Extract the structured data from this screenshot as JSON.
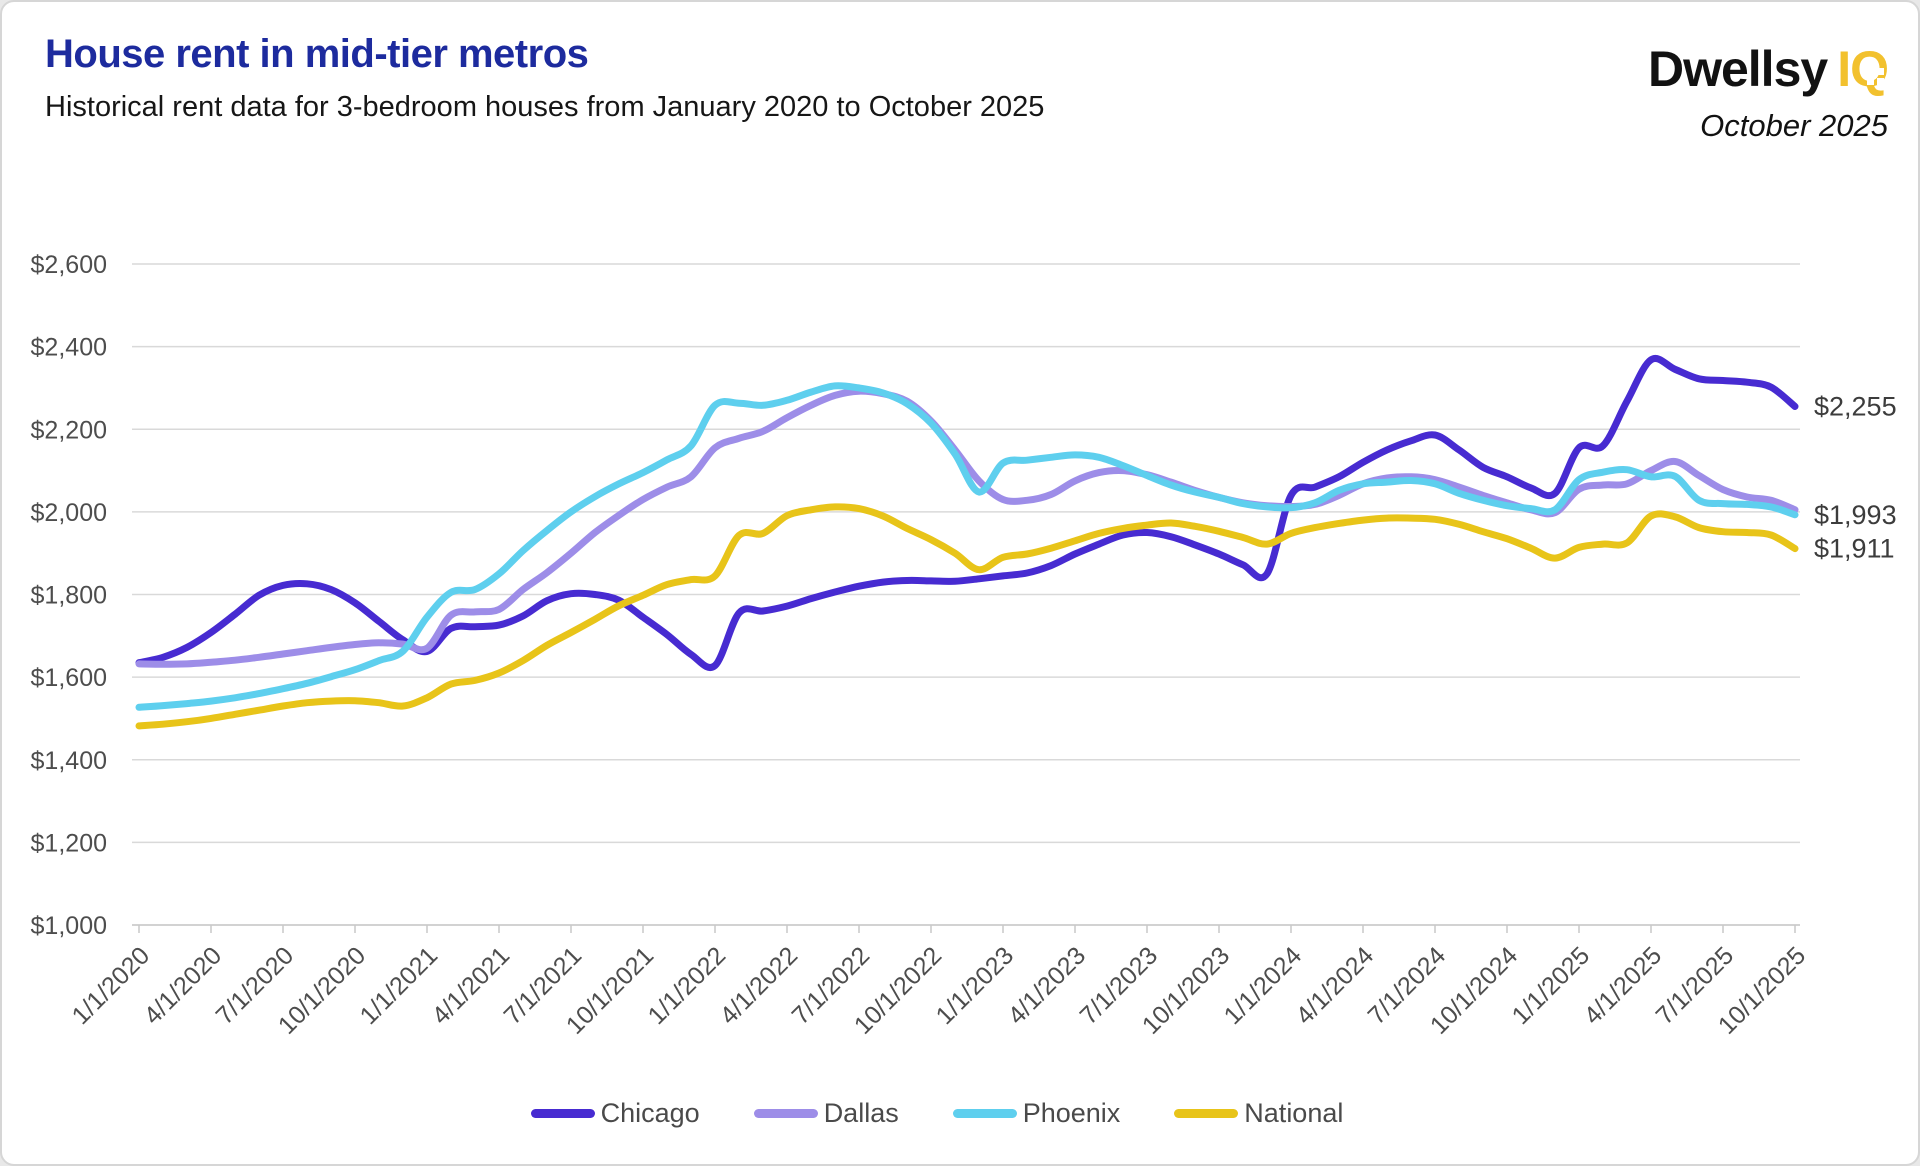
{
  "header": {
    "title": "House rent in mid-tier metros",
    "subtitle": "Historical rent data for 3-bedroom houses from January 2020 to October 2025",
    "logo_brand": "Dwellsy",
    "logo_suffix": "IQ",
    "date_label": "October 2025"
  },
  "colors": {
    "title": "#1d2b9e",
    "logo_accent": "#f2c12e",
    "grid": "#d9d9d9",
    "axis_text": "#4d4d4d",
    "end_label_text": "#3c3c3c"
  },
  "chart_data": {
    "type": "line",
    "title": "House rent in mid-tier metros",
    "x_unit": "month",
    "x_start": "1/1/2020",
    "x_end": "10/1/2025",
    "tick_every_months": 3,
    "x_tick_labels": [
      "1/1/2020",
      "4/1/2020",
      "7/1/2020",
      "10/1/2020",
      "1/1/2021",
      "4/1/2021",
      "7/1/2021",
      "10/1/2021",
      "1/1/2022",
      "4/1/2022",
      "7/1/2022",
      "10/1/2022",
      "1/1/2023",
      "4/1/2023",
      "7/1/2023",
      "10/1/2023",
      "1/1/2024",
      "4/1/2024",
      "7/1/2024",
      "10/1/2024",
      "1/1/2025",
      "4/1/2025",
      "7/1/2025",
      "10/1/2025"
    ],
    "ylim": [
      1000,
      2600
    ],
    "y_ticks": [
      1000,
      1200,
      1400,
      1600,
      1800,
      2000,
      2200,
      2400,
      2600
    ],
    "y_tick_labels": [
      "$1,000",
      "$1,200",
      "$1,400",
      "$1,600",
      "$1,800",
      "$2,000",
      "$2,200",
      "$2,400",
      "$2,600"
    ],
    "grid": "horizontal-only",
    "legend_position": "bottom",
    "series": [
      {
        "name": "Chicago",
        "color": "#472bd1",
        "values": [
          1635,
          1648,
          1672,
          1708,
          1752,
          1798,
          1822,
          1826,
          1812,
          1780,
          1735,
          1690,
          1662,
          1718,
          1722,
          1726,
          1748,
          1785,
          1802,
          1800,
          1786,
          1745,
          1703,
          1655,
          1628,
          1755,
          1760,
          1772,
          1790,
          1806,
          1820,
          1830,
          1834,
          1833,
          1832,
          1838,
          1845,
          1852,
          1870,
          1898,
          1922,
          1944,
          1950,
          1940,
          1920,
          1898,
          1872,
          1850,
          2040,
          2060,
          2085,
          2120,
          2150,
          2172,
          2186,
          2150,
          2108,
          2085,
          2058,
          2045,
          2155,
          2160,
          2268,
          2368,
          2345,
          2322,
          2318,
          2314,
          2302,
          2255
        ]
      },
      {
        "name": "Dallas",
        "color": "#9d8de8",
        "values": [
          1632,
          1631,
          1632,
          1636,
          1641,
          1648,
          1656,
          1664,
          1672,
          1679,
          1683,
          1680,
          1670,
          1750,
          1758,
          1764,
          1812,
          1853,
          1900,
          1950,
          1992,
          2030,
          2060,
          2085,
          2155,
          2178,
          2195,
          2228,
          2258,
          2282,
          2292,
          2286,
          2268,
          2220,
          2150,
          2075,
          2030,
          2028,
          2042,
          2075,
          2095,
          2100,
          2090,
          2072,
          2052,
          2035,
          2022,
          2015,
          2013,
          2018,
          2040,
          2068,
          2082,
          2085,
          2078,
          2060,
          2040,
          2022,
          2005,
          1998,
          2055,
          2065,
          2068,
          2100,
          2122,
          2088,
          2054,
          2036,
          2028,
          2005
        ]
      },
      {
        "name": "Phoenix",
        "color": "#5ecfee",
        "values": [
          1527,
          1531,
          1536,
          1542,
          1550,
          1560,
          1572,
          1585,
          1601,
          1618,
          1640,
          1663,
          1745,
          1805,
          1812,
          1850,
          1906,
          1955,
          2000,
          2037,
          2068,
          2095,
          2126,
          2160,
          2258,
          2263,
          2258,
          2270,
          2290,
          2305,
          2300,
          2288,
          2262,
          2215,
          2140,
          2048,
          2118,
          2125,
          2132,
          2138,
          2132,
          2112,
          2088,
          2065,
          2048,
          2035,
          2020,
          2012,
          2010,
          2022,
          2052,
          2068,
          2072,
          2076,
          2068,
          2045,
          2028,
          2015,
          2008,
          2005,
          2078,
          2096,
          2102,
          2085,
          2086,
          2028,
          2020,
          2018,
          2012,
          1993
        ]
      },
      {
        "name": "National",
        "color": "#e8c419",
        "values": [
          1482,
          1486,
          1492,
          1500,
          1510,
          1520,
          1530,
          1538,
          1542,
          1543,
          1538,
          1530,
          1550,
          1583,
          1592,
          1610,
          1640,
          1677,
          1708,
          1740,
          1773,
          1798,
          1824,
          1836,
          1845,
          1943,
          1948,
          1991,
          2005,
          2012,
          2008,
          1990,
          1960,
          1933,
          1900,
          1860,
          1890,
          1898,
          1912,
          1930,
          1948,
          1960,
          1968,
          1973,
          1965,
          1953,
          1938,
          1922,
          1948,
          1962,
          1972,
          1980,
          1985,
          1985,
          1982,
          1970,
          1952,
          1935,
          1912,
          1888,
          1914,
          1922,
          1925,
          1990,
          1988,
          1962,
          1952,
          1950,
          1944,
          1911
        ]
      }
    ],
    "end_labels": [
      {
        "text": "$2,255",
        "value": 2255,
        "series": "Chicago"
      },
      {
        "text": "$1,993",
        "value": 1993,
        "series": "Phoenix"
      },
      {
        "text": "$1,911",
        "value": 1911,
        "series": "National"
      }
    ],
    "legend": [
      "Chicago",
      "Dallas",
      "Phoenix",
      "National"
    ]
  }
}
